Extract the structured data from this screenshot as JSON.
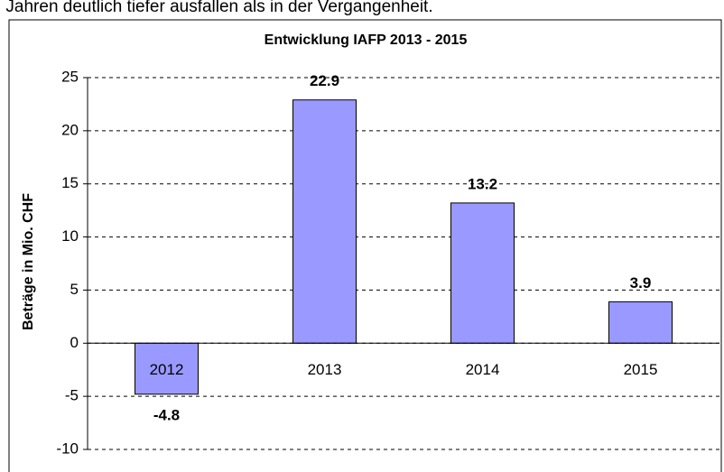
{
  "page_text": "en Jahren deutlich tiefer ausfallen als in der Vergangenheit.",
  "chart_data": {
    "type": "bar",
    "title": "Entwicklung IAFP 2013 - 2015",
    "y_label": "Beträge in Mio. CHF",
    "categories": [
      "2012",
      "2013",
      "2014",
      "2015"
    ],
    "values": [
      -4.8,
      22.9,
      13.2,
      3.9
    ],
    "color": "#9999ff",
    "ylim": [
      -10,
      25
    ],
    "yticks": [
      -10,
      -5,
      0,
      5,
      10,
      15,
      20,
      25
    ],
    "grid": true
  }
}
